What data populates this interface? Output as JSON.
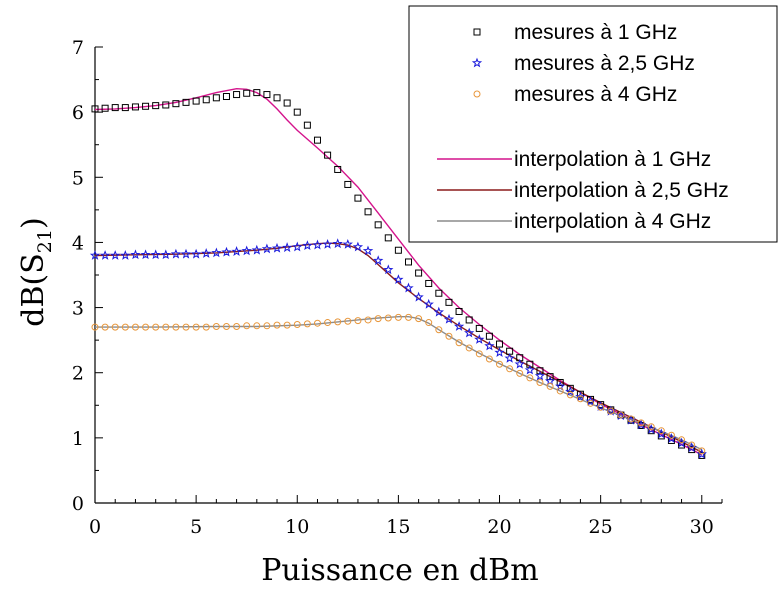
{
  "chart_data": {
    "type": "scatter",
    "title": "",
    "xlabel": "Puissance en dBm",
    "ylabel_prefix": "dB(S",
    "ylabel_sub": "21",
    "ylabel_suffix": ")",
    "xlim": [
      0,
      31
    ],
    "ylim": [
      0,
      7
    ],
    "xticks": [
      "0",
      "5",
      "10",
      "15",
      "20",
      "25",
      "30"
    ],
    "yticks": [
      "0",
      "1",
      "2",
      "3",
      "4",
      "5",
      "6",
      "7"
    ],
    "legend_position": "top-right",
    "measurements": [
      {
        "name": "mesures à 1 GHz",
        "marker": "square",
        "color": "#000000",
        "points": [
          [
            0,
            6.05
          ],
          [
            0.5,
            6.06
          ],
          [
            1,
            6.07
          ],
          [
            1.5,
            6.07
          ],
          [
            2,
            6.08
          ],
          [
            2.5,
            6.09
          ],
          [
            3,
            6.1
          ],
          [
            3.5,
            6.11
          ],
          [
            4,
            6.13
          ],
          [
            4.5,
            6.15
          ],
          [
            5,
            6.17
          ],
          [
            5.5,
            6.19
          ],
          [
            6,
            6.22
          ],
          [
            6.5,
            6.24
          ],
          [
            7,
            6.27
          ],
          [
            7.5,
            6.29
          ],
          [
            8,
            6.3
          ],
          [
            8.5,
            6.27
          ],
          [
            9,
            6.22
          ],
          [
            9.5,
            6.14
          ],
          [
            10,
            6.0
          ],
          [
            10.5,
            5.8
          ],
          [
            11,
            5.57
          ],
          [
            11.5,
            5.34
          ],
          [
            12,
            5.12
          ],
          [
            12.5,
            4.89
          ],
          [
            13,
            4.68
          ],
          [
            13.5,
            4.47
          ],
          [
            14,
            4.27
          ],
          [
            14.5,
            4.07
          ],
          [
            15,
            3.88
          ],
          [
            15.5,
            3.7
          ],
          [
            16,
            3.53
          ],
          [
            16.5,
            3.37
          ],
          [
            17,
            3.22
          ],
          [
            17.5,
            3.08
          ],
          [
            18,
            2.94
          ],
          [
            18.5,
            2.81
          ],
          [
            19,
            2.68
          ],
          [
            19.5,
            2.56
          ],
          [
            20,
            2.44
          ],
          [
            20.5,
            2.33
          ],
          [
            21,
            2.23
          ],
          [
            21.5,
            2.13
          ],
          [
            22,
            2.03
          ],
          [
            22.5,
            1.94
          ],
          [
            23,
            1.85
          ],
          [
            23.5,
            1.76
          ],
          [
            24,
            1.67
          ],
          [
            24.5,
            1.59
          ],
          [
            25,
            1.51
          ],
          [
            25.5,
            1.43
          ],
          [
            26,
            1.35
          ],
          [
            26.5,
            1.27
          ],
          [
            27,
            1.19
          ],
          [
            27.5,
            1.11
          ],
          [
            28,
            1.03
          ],
          [
            28.5,
            0.96
          ],
          [
            29,
            0.89
          ],
          [
            29.5,
            0.82
          ],
          [
            30,
            0.73
          ]
        ]
      },
      {
        "name": "mesures à 2,5 GHz",
        "marker": "star",
        "color": "#1a1adc",
        "points": [
          [
            0,
            3.8
          ],
          [
            0.5,
            3.8
          ],
          [
            1,
            3.8
          ],
          [
            1.5,
            3.8
          ],
          [
            2,
            3.81
          ],
          [
            2.5,
            3.81
          ],
          [
            3,
            3.81
          ],
          [
            3.5,
            3.81
          ],
          [
            4,
            3.82
          ],
          [
            4.5,
            3.82
          ],
          [
            5,
            3.82
          ],
          [
            5.5,
            3.83
          ],
          [
            6,
            3.84
          ],
          [
            6.5,
            3.85
          ],
          [
            7,
            3.86
          ],
          [
            7.5,
            3.87
          ],
          [
            8,
            3.88
          ],
          [
            8.5,
            3.9
          ],
          [
            9,
            3.91
          ],
          [
            9.5,
            3.92
          ],
          [
            10,
            3.93
          ],
          [
            10.5,
            3.95
          ],
          [
            11,
            3.96
          ],
          [
            11.5,
            3.97
          ],
          [
            12,
            3.98
          ],
          [
            12.5,
            3.97
          ],
          [
            13,
            3.93
          ],
          [
            13.5,
            3.87
          ],
          [
            14,
            3.72
          ],
          [
            14.5,
            3.58
          ],
          [
            15,
            3.43
          ],
          [
            15.5,
            3.3
          ],
          [
            16,
            3.16
          ],
          [
            16.5,
            3.05
          ],
          [
            17,
            2.93
          ],
          [
            17.5,
            2.82
          ],
          [
            18,
            2.71
          ],
          [
            18.5,
            2.61
          ],
          [
            19,
            2.51
          ],
          [
            19.5,
            2.41
          ],
          [
            20,
            2.31
          ],
          [
            20.5,
            2.22
          ],
          [
            21,
            2.13
          ],
          [
            21.5,
            2.04
          ],
          [
            22,
            1.95
          ],
          [
            22.5,
            1.87
          ],
          [
            23,
            1.79
          ],
          [
            23.5,
            1.71
          ],
          [
            24,
            1.63
          ],
          [
            24.5,
            1.56
          ],
          [
            25,
            1.48
          ],
          [
            25.5,
            1.41
          ],
          [
            26,
            1.34
          ],
          [
            26.5,
            1.27
          ],
          [
            27,
            1.2
          ],
          [
            27.5,
            1.13
          ],
          [
            28,
            1.06
          ],
          [
            28.5,
            0.99
          ],
          [
            29,
            0.92
          ],
          [
            29.5,
            0.85
          ],
          [
            30,
            0.75
          ]
        ]
      },
      {
        "name": "mesures à 4 GHz",
        "marker": "circle",
        "color": "#e8963a",
        "points": [
          [
            0,
            2.7
          ],
          [
            0.5,
            2.7
          ],
          [
            1,
            2.7
          ],
          [
            1.5,
            2.7
          ],
          [
            2,
            2.7
          ],
          [
            2.5,
            2.7
          ],
          [
            3,
            2.7
          ],
          [
            3.5,
            2.7
          ],
          [
            4,
            2.7
          ],
          [
            4.5,
            2.7
          ],
          [
            5,
            2.7
          ],
          [
            5.5,
            2.7
          ],
          [
            6,
            2.71
          ],
          [
            6.5,
            2.71
          ],
          [
            7,
            2.71
          ],
          [
            7.5,
            2.72
          ],
          [
            8,
            2.72
          ],
          [
            8.5,
            2.72
          ],
          [
            9,
            2.73
          ],
          [
            9.5,
            2.73
          ],
          [
            10,
            2.74
          ],
          [
            10.5,
            2.75
          ],
          [
            11,
            2.76
          ],
          [
            11.5,
            2.77
          ],
          [
            12,
            2.78
          ],
          [
            12.5,
            2.79
          ],
          [
            13,
            2.8
          ],
          [
            13.5,
            2.81
          ],
          [
            14,
            2.83
          ],
          [
            14.5,
            2.84
          ],
          [
            15,
            2.85
          ],
          [
            15.5,
            2.85
          ],
          [
            16,
            2.83
          ],
          [
            16.5,
            2.77
          ],
          [
            17,
            2.66
          ],
          [
            17.5,
            2.56
          ],
          [
            18,
            2.46
          ],
          [
            18.5,
            2.38
          ],
          [
            19,
            2.29
          ],
          [
            19.5,
            2.21
          ],
          [
            20,
            2.13
          ],
          [
            20.5,
            2.06
          ],
          [
            21,
            1.99
          ],
          [
            21.5,
            1.92
          ],
          [
            22,
            1.85
          ],
          [
            22.5,
            1.79
          ],
          [
            23,
            1.72
          ],
          [
            23.5,
            1.66
          ],
          [
            24,
            1.6
          ],
          [
            24.5,
            1.53
          ],
          [
            25,
            1.47
          ],
          [
            25.5,
            1.41
          ],
          [
            26,
            1.35
          ],
          [
            26.5,
            1.29
          ],
          [
            27,
            1.23
          ],
          [
            27.5,
            1.17
          ],
          [
            28,
            1.11
          ],
          [
            28.5,
            1.04
          ],
          [
            29,
            0.97
          ],
          [
            29.5,
            0.89
          ],
          [
            30,
            0.8
          ]
        ]
      }
    ],
    "interpolations": [
      {
        "name": "interpolation à 1 GHz",
        "color": "#d4148c",
        "points": [
          [
            0,
            6.04
          ],
          [
            1,
            6.05
          ],
          [
            2,
            6.07
          ],
          [
            3,
            6.1
          ],
          [
            4,
            6.15
          ],
          [
            5,
            6.22
          ],
          [
            6,
            6.3
          ],
          [
            7,
            6.36
          ],
          [
            7.5,
            6.35
          ],
          [
            8,
            6.3
          ],
          [
            8.5,
            6.2
          ],
          [
            9,
            6.05
          ],
          [
            9.5,
            5.88
          ],
          [
            10,
            5.72
          ],
          [
            11,
            5.45
          ],
          [
            12,
            5.17
          ],
          [
            13,
            4.85
          ],
          [
            14,
            4.45
          ],
          [
            15,
            4.05
          ],
          [
            16,
            3.65
          ],
          [
            17,
            3.3
          ],
          [
            18,
            3.0
          ],
          [
            19,
            2.74
          ],
          [
            20,
            2.5
          ],
          [
            21,
            2.28
          ],
          [
            22,
            2.08
          ],
          [
            23,
            1.88
          ],
          [
            24,
            1.7
          ],
          [
            25,
            1.52
          ],
          [
            26,
            1.36
          ],
          [
            27,
            1.2
          ],
          [
            28,
            1.05
          ],
          [
            29,
            0.9
          ],
          [
            30,
            0.74
          ]
        ]
      },
      {
        "name": "interpolation à 2,5 GHz",
        "color": "#8b1c1c",
        "points": [
          [
            0,
            3.8
          ],
          [
            2,
            3.81
          ],
          [
            4,
            3.82
          ],
          [
            6,
            3.84
          ],
          [
            8,
            3.88
          ],
          [
            9,
            3.91
          ],
          [
            10,
            3.95
          ],
          [
            11,
            3.98
          ],
          [
            11.5,
            3.99
          ],
          [
            12,
            3.98
          ],
          [
            12.5,
            3.96
          ],
          [
            13,
            3.9
          ],
          [
            13.5,
            3.8
          ],
          [
            14,
            3.66
          ],
          [
            14.5,
            3.52
          ],
          [
            15,
            3.38
          ],
          [
            16,
            3.14
          ],
          [
            17,
            2.92
          ],
          [
            18,
            2.72
          ],
          [
            19,
            2.53
          ],
          [
            20,
            2.35
          ],
          [
            21,
            2.18
          ],
          [
            22,
            2.02
          ],
          [
            23,
            1.86
          ],
          [
            24,
            1.7
          ],
          [
            25,
            1.54
          ],
          [
            26,
            1.39
          ],
          [
            27,
            1.24
          ],
          [
            28,
            1.09
          ],
          [
            29,
            0.94
          ],
          [
            30,
            0.78
          ]
        ]
      },
      {
        "name": "interpolation à 4 GHz",
        "color": "#8c8c8c",
        "points": [
          [
            0,
            2.7
          ],
          [
            3,
            2.7
          ],
          [
            6,
            2.71
          ],
          [
            8,
            2.71
          ],
          [
            10,
            2.73
          ],
          [
            11,
            2.75
          ],
          [
            12,
            2.78
          ],
          [
            13,
            2.81
          ],
          [
            14,
            2.84
          ],
          [
            15,
            2.86
          ],
          [
            15.5,
            2.86
          ],
          [
            16,
            2.83
          ],
          [
            16.5,
            2.76
          ],
          [
            17,
            2.66
          ],
          [
            18,
            2.47
          ],
          [
            19,
            2.3
          ],
          [
            20,
            2.14
          ],
          [
            21,
            1.99
          ],
          [
            22,
            1.85
          ],
          [
            23,
            1.72
          ],
          [
            24,
            1.59
          ],
          [
            25,
            1.46
          ],
          [
            26,
            1.34
          ],
          [
            27,
            1.22
          ],
          [
            28,
            1.1
          ],
          [
            29,
            0.97
          ],
          [
            30,
            0.82
          ]
        ]
      }
    ]
  }
}
